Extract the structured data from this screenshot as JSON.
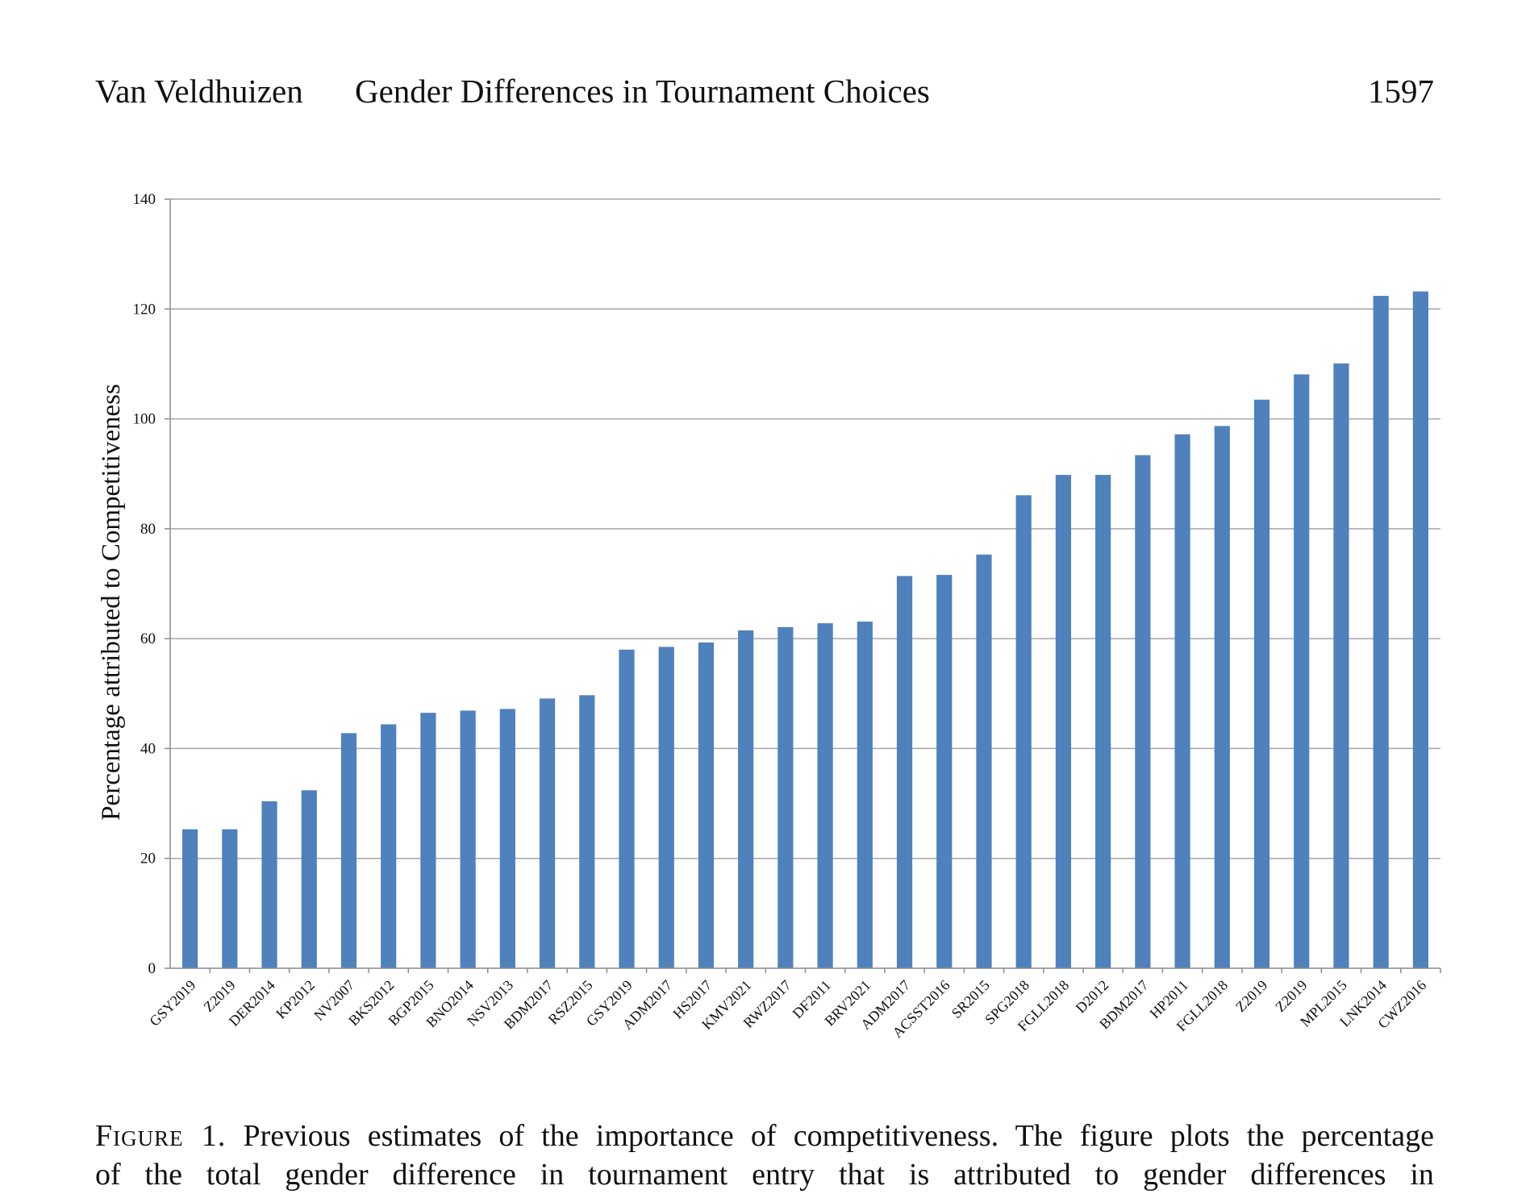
{
  "header": {
    "author": "Van Veldhuizen",
    "title": "Gender Differences in Tournament Choices",
    "page_number": "1597"
  },
  "chart_data": {
    "type": "bar",
    "title": "",
    "xlabel": "",
    "ylabel": "Percentage attributed to Competitiveness",
    "ylim": [
      0,
      140
    ],
    "yticks": [
      0,
      20,
      40,
      60,
      80,
      100,
      120,
      140
    ],
    "grid": true,
    "legend": "none",
    "bar_color": "#4f81bd",
    "categories": [
      "GSY2019",
      "Z2019",
      "DER2014",
      "KP2012",
      "NV2007",
      "BKS2012",
      "BGP2015",
      "BNO2014",
      "NSV2013",
      "BDM2017",
      "RSZ2015",
      "GSY2019",
      "ADM2017",
      "HS2017",
      "KMV2021",
      "RWZ2017",
      "DF2011",
      "BRV2021",
      "ADM2017",
      "ACSST2016",
      "SR2015",
      "SPG2018",
      "FGLL2018",
      "D2012",
      "BDM2017",
      "HP2011",
      "FGLL2018",
      "Z2019",
      "Z2019",
      "MPL2015",
      "LNK2014",
      "CWZ2016"
    ],
    "values": [
      25.3,
      25.3,
      30.4,
      32.4,
      42.8,
      44.4,
      46.5,
      46.9,
      47.2,
      49.1,
      49.7,
      58.0,
      58.5,
      59.3,
      61.5,
      62.1,
      62.8,
      63.1,
      71.4,
      71.6,
      75.3,
      86.1,
      89.8,
      89.8,
      93.4,
      97.2,
      98.7,
      103.5,
      108.1,
      110.1,
      122.4,
      123.2
    ]
  },
  "caption": {
    "label": "Figure 1.",
    "line1_text": "Previous estimates of the importance of competitiveness. The figure plots the percentage",
    "line2_text": "of the total gender difference in tournament entry that is attributed to gender differences in"
  }
}
